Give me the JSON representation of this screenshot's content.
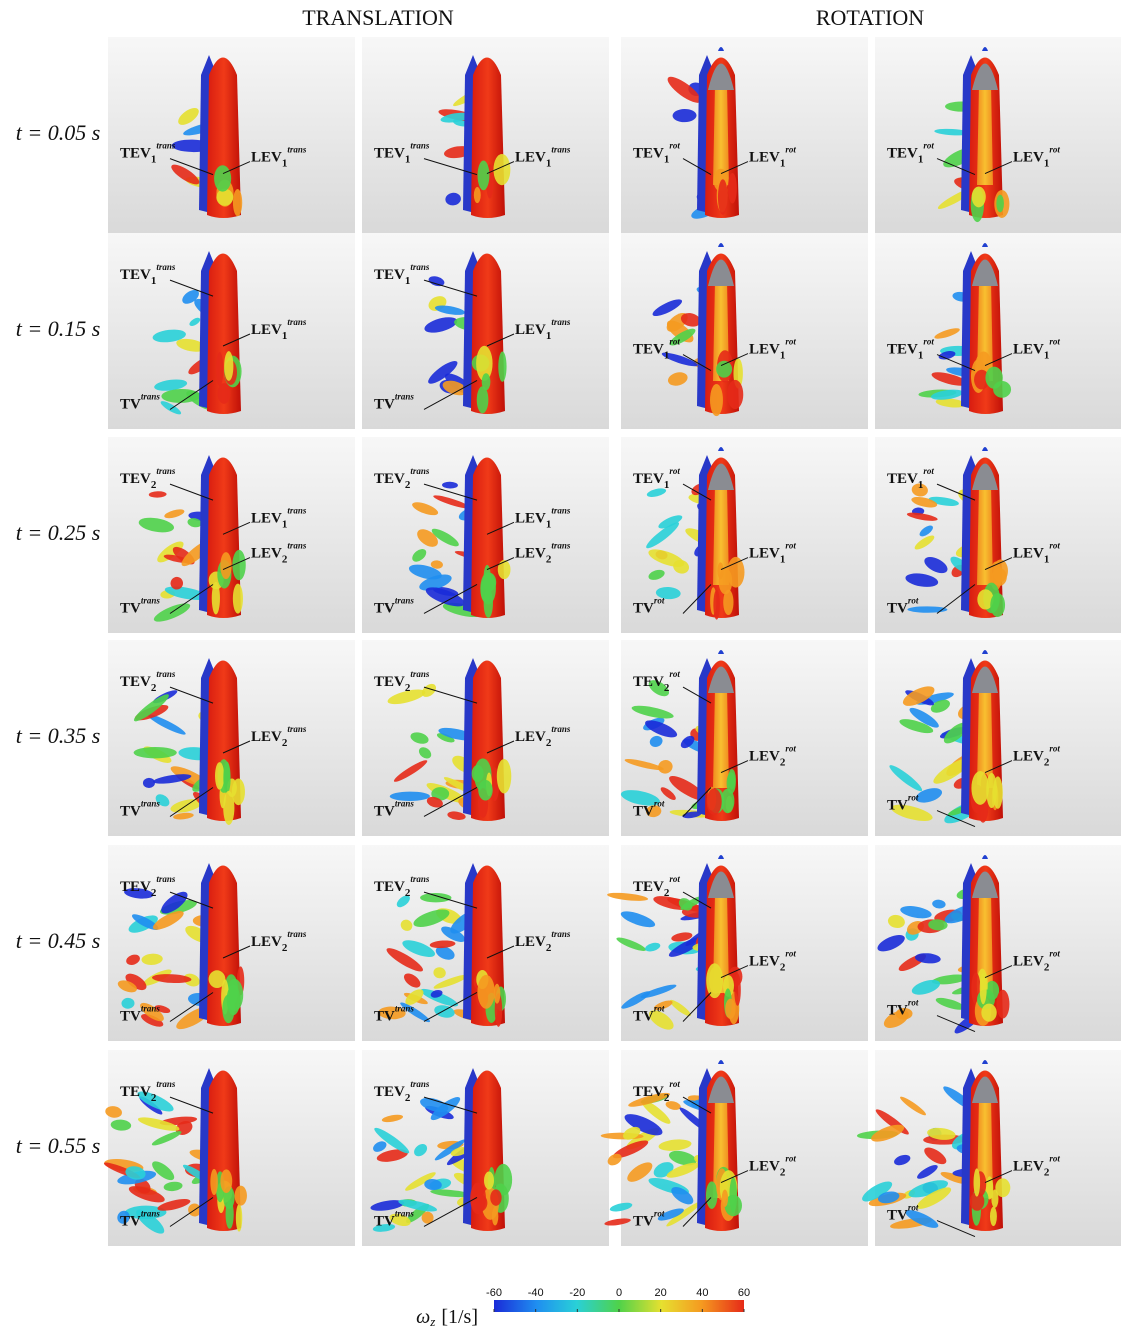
{
  "headers": [
    "TRANSLATION",
    "ROTATION"
  ],
  "rows": [
    {
      "time": "t = 0.05 s",
      "panels": [
        {
          "left": [
            {
              "base": "TEV",
              "sub": "1",
              "sup": "trans"
            }
          ],
          "right": [
            {
              "base": "LEV",
              "sub": "1",
              "sup": "trans"
            }
          ]
        },
        {
          "left": [
            {
              "base": "TEV",
              "sub": "1",
              "sup": "trans"
            }
          ],
          "right": [
            {
              "base": "LEV",
              "sub": "1",
              "sup": "trans"
            }
          ]
        },
        {
          "left": [
            {
              "base": "TEV",
              "sub": "1",
              "sup": "rot"
            }
          ],
          "right": [
            {
              "base": "LEV",
              "sub": "1",
              "sup": "rot"
            }
          ]
        },
        {
          "left": [
            {
              "base": "TEV",
              "sub": "1",
              "sup": "rot"
            }
          ],
          "right": [
            {
              "base": "LEV",
              "sub": "1",
              "sup": "rot"
            }
          ]
        }
      ]
    },
    {
      "time": "t = 0.15 s",
      "panels": [
        {
          "left": [
            {
              "base": "TEV",
              "sub": "1",
              "sup": "trans"
            },
            {
              "base": "TV",
              "sup": "trans"
            }
          ],
          "right": [
            {
              "base": "LEV",
              "sub": "1",
              "sup": "trans"
            }
          ]
        },
        {
          "left": [
            {
              "base": "TEV",
              "sub": "1",
              "sup": "trans"
            },
            {
              "base": "TV",
              "sup": "trans"
            }
          ],
          "right": [
            {
              "base": "LEV",
              "sub": "1",
              "sup": "trans"
            }
          ]
        },
        {
          "left": [
            {
              "base": "TEV",
              "sub": "1",
              "sup": "rot"
            }
          ],
          "right": [
            {
              "base": "LEV",
              "sub": "1",
              "sup": "rot"
            }
          ]
        },
        {
          "left": [
            {
              "base": "TEV",
              "sub": "1",
              "sup": "rot"
            }
          ],
          "right": [
            {
              "base": "LEV",
              "sub": "1",
              "sup": "rot"
            }
          ]
        }
      ]
    },
    {
      "time": "t = 0.25 s",
      "panels": [
        {
          "left": [
            {
              "base": "TEV",
              "sub": "2",
              "sup": "trans"
            },
            {
              "base": "TV",
              "sup": "trans"
            }
          ],
          "right": [
            {
              "base": "LEV",
              "sub": "1",
              "sup": "trans"
            },
            {
              "base": "LEV",
              "sub": "2",
              "sup": "trans"
            }
          ]
        },
        {
          "left": [
            {
              "base": "TEV",
              "sub": "2",
              "sup": "trans"
            },
            {
              "base": "TV",
              "sup": "trans"
            }
          ],
          "right": [
            {
              "base": "LEV",
              "sub": "1",
              "sup": "trans"
            },
            {
              "base": "LEV",
              "sub": "2",
              "sup": "trans"
            }
          ]
        },
        {
          "left": [
            {
              "base": "TEV",
              "sub": "1",
              "sup": "rot"
            },
            {
              "base": "TV",
              "sup": "rot"
            }
          ],
          "right": [
            {
              "base": "LEV",
              "sub": "1",
              "sup": "rot"
            }
          ]
        },
        {
          "left": [
            {
              "base": "TEV",
              "sub": "1",
              "sup": "rot"
            },
            {
              "base": "TV",
              "sup": "rot"
            }
          ],
          "right": [
            {
              "base": "LEV",
              "sub": "1",
              "sup": "rot"
            }
          ]
        }
      ]
    },
    {
      "time": "t = 0.35 s",
      "panels": [
        {
          "left": [
            {
              "base": "TEV",
              "sub": "2",
              "sup": "trans"
            },
            {
              "base": "TV",
              "sup": "trans"
            }
          ],
          "right": [
            {
              "base": "LEV",
              "sub": "2",
              "sup": "trans"
            }
          ]
        },
        {
          "left": [
            {
              "base": "TEV",
              "sub": "2",
              "sup": "trans"
            },
            {
              "base": "TV",
              "sup": "trans"
            }
          ],
          "right": [
            {
              "base": "LEV",
              "sub": "2",
              "sup": "trans"
            }
          ]
        },
        {
          "left": [
            {
              "base": "TEV",
              "sub": "2",
              "sup": "rot"
            },
            {
              "base": "TV",
              "sup": "rot"
            }
          ],
          "right": [
            {
              "base": "LEV",
              "sub": "2",
              "sup": "rot"
            }
          ]
        },
        {
          "left": [
            {
              "base": "TV",
              "sup": "rot"
            }
          ],
          "right": [
            {
              "base": "LEV",
              "sub": "2",
              "sup": "rot"
            }
          ]
        }
      ]
    },
    {
      "time": "t = 0.45 s",
      "panels": [
        {
          "left": [
            {
              "base": "TEV",
              "sub": "2",
              "sup": "trans"
            },
            {
              "base": "TV",
              "sup": "trans"
            }
          ],
          "right": [
            {
              "base": "LEV",
              "sub": "2",
              "sup": "trans"
            }
          ]
        },
        {
          "left": [
            {
              "base": "TEV",
              "sub": "2",
              "sup": "trans"
            },
            {
              "base": "TV",
              "sup": "trans"
            }
          ],
          "right": [
            {
              "base": "LEV",
              "sub": "2",
              "sup": "trans"
            }
          ]
        },
        {
          "left": [
            {
              "base": "TEV",
              "sub": "2",
              "sup": "rot"
            },
            {
              "base": "TV",
              "sup": "rot"
            }
          ],
          "right": [
            {
              "base": "LEV",
              "sub": "2",
              "sup": "rot"
            }
          ]
        },
        {
          "left": [
            {
              "base": "TV",
              "sup": "rot"
            }
          ],
          "right": [
            {
              "base": "LEV",
              "sub": "2",
              "sup": "rot"
            }
          ]
        }
      ]
    },
    {
      "time": "t = 0.55 s",
      "panels": [
        {
          "left": [
            {
              "base": "TEV",
              "sub": "2",
              "sup": "trans"
            },
            {
              "base": "TV",
              "sup": "trans"
            }
          ],
          "right": []
        },
        {
          "left": [
            {
              "base": "TEV",
              "sub": "2",
              "sup": "trans"
            },
            {
              "base": "TV",
              "sup": "trans"
            }
          ],
          "right": []
        },
        {
          "left": [
            {
              "base": "TEV",
              "sub": "2",
              "sup": "rot"
            },
            {
              "base": "TV",
              "sup": "rot"
            }
          ],
          "right": [
            {
              "base": "LEV",
              "sub": "2",
              "sup": "rot"
            }
          ]
        },
        {
          "left": [
            {
              "base": "TV",
              "sup": "rot"
            }
          ],
          "right": [
            {
              "base": "LEV",
              "sub": "2",
              "sup": "rot"
            }
          ]
        }
      ]
    }
  ],
  "colorbar": {
    "label": {
      "symbol": "ω",
      "sub": "z",
      "unit": "[1/s]"
    },
    "lim": [
      -60,
      60
    ],
    "ticks": [
      -60,
      -40,
      -20,
      0,
      20,
      40,
      60
    ]
  }
}
